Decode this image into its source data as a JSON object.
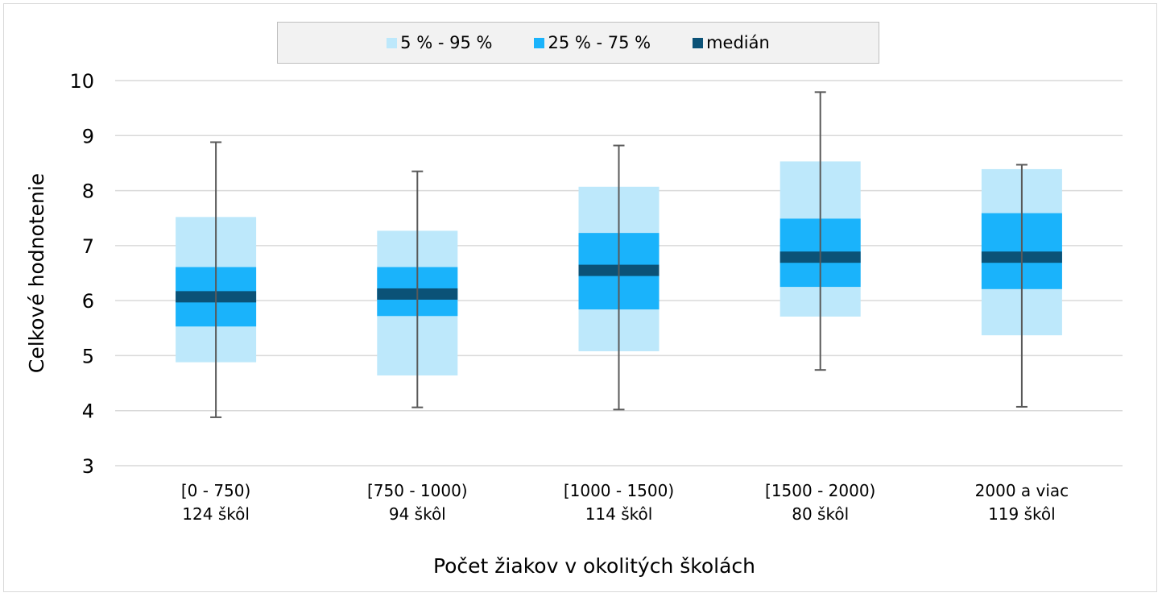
{
  "chart_data": {
    "type": "box",
    "xlabel": "Počet žiakov v okolitých školách",
    "ylabel": "Celkové hodnotenie",
    "ylim": [
      3,
      10
    ],
    "yticks": [
      "3",
      "4",
      "5",
      "6",
      "7",
      "8",
      "9",
      "10"
    ],
    "grid": true,
    "legend": {
      "placement": "top",
      "items": [
        {
          "label": "5 % - 95 %",
          "color": "#bde8fb"
        },
        {
          "label": "25 % - 75 %",
          "color": "#1ab3fb"
        },
        {
          "label": "medián",
          "color": "#0b5277"
        }
      ]
    },
    "whisker_color": "#595959",
    "categories": [
      {
        "line1": "[0 - 750)",
        "line2": "124 škôl",
        "min": 3.88,
        "p5": 4.88,
        "q1": 5.53,
        "median": 6.07,
        "q3": 6.61,
        "p95": 7.52,
        "max": 8.88
      },
      {
        "line1": "[750 - 1000)",
        "line2": "94 škôl",
        "min": 4.06,
        "p5": 4.64,
        "q1": 5.72,
        "median": 6.12,
        "q3": 6.61,
        "p95": 7.27,
        "max": 8.35
      },
      {
        "line1": "[1000 - 1500)",
        "line2": "114 škôl",
        "min": 4.02,
        "p5": 5.08,
        "q1": 5.84,
        "median": 6.55,
        "q3": 7.23,
        "p95": 8.07,
        "max": 8.82
      },
      {
        "line1": "[1500 - 2000)",
        "line2": "80 škôl",
        "min": 4.74,
        "p5": 5.71,
        "q1": 6.25,
        "median": 6.79,
        "q3": 7.49,
        "p95": 8.53,
        "max": 9.79
      },
      {
        "line1": "2000 a viac",
        "line2": "119 škôl",
        "min": 4.07,
        "p5": 5.37,
        "q1": 6.21,
        "median": 6.79,
        "q3": 7.59,
        "p95": 8.39,
        "max": 8.47
      }
    ]
  }
}
